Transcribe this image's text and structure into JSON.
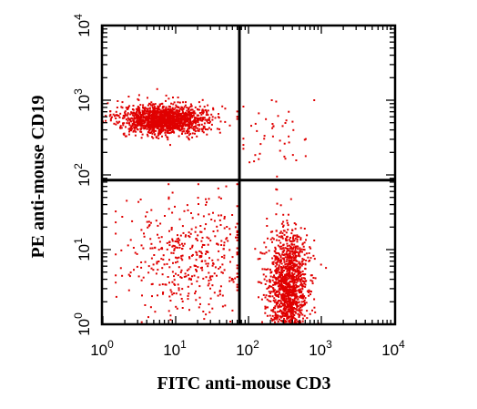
{
  "chart_data": {
    "type": "scatter",
    "xlabel": "FITC anti-mouse CD3",
    "ylabel": "PE anti-mouse CD19",
    "x_scale": "log",
    "y_scale": "log",
    "xlim": [
      1,
      10000
    ],
    "ylim": [
      1,
      10000
    ],
    "ticks": [
      {
        "base": "10",
        "exp": "0"
      },
      {
        "base": "10",
        "exp": "1"
      },
      {
        "base": "10",
        "exp": "2"
      },
      {
        "base": "10",
        "exp": "3"
      },
      {
        "base": "10",
        "exp": "4"
      }
    ],
    "gates": {
      "x": 75,
      "y": 85
    },
    "point_color": "#e00000",
    "grid": false,
    "populations": [
      {
        "id": "cd19-positive-cluster",
        "n": 1500,
        "x_center": 7,
        "x_spread_decades": 0.3,
        "y_center": 550,
        "y_spread_decades": 0.1,
        "x_min": 1,
        "x_max": 70,
        "y_min": 150,
        "y_max": 2500
      },
      {
        "id": "cd3-positive-cluster",
        "n": 1400,
        "x_center": 350,
        "x_spread_decades": 0.14,
        "y_center": 3,
        "y_spread_decades": 0.4,
        "x_min": 90,
        "x_max": 1200,
        "y_min": 1,
        "y_max": 70
      },
      {
        "id": "double-negative-scatter",
        "n": 420,
        "x_center": 15,
        "x_spread_decades": 0.45,
        "y_center": 8,
        "y_spread_decades": 0.4,
        "x_min": 1.5,
        "x_max": 70,
        "y_min": 1,
        "y_max": 75
      },
      {
        "id": "double-positive-scatter",
        "n": 45,
        "x_center": 250,
        "x_spread_decades": 0.25,
        "y_center": 300,
        "y_spread_decades": 0.35,
        "x_min": 85,
        "x_max": 1000,
        "y_min": 95,
        "y_max": 1000
      },
      {
        "id": "bottom-edge-events",
        "n": 140,
        "x_center": 12,
        "x_spread_decades": 0.5,
        "y_center": 1,
        "y_spread_decades": 0,
        "x_min": 1.3,
        "x_max": 1000,
        "y_min": 1,
        "y_max": 1.1
      }
    ]
  }
}
